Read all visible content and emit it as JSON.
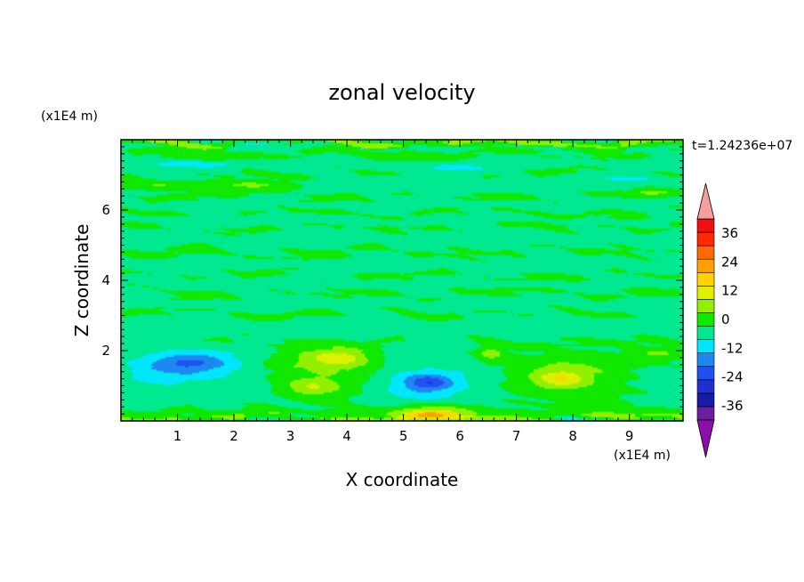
{
  "chart_data": {
    "type": "heatmap",
    "title": "zonal velocity",
    "xlabel": "X coordinate",
    "ylabel": "Z coordinate",
    "x_unit": "(x1E4 m)",
    "y_unit": "(x1E4 m)",
    "time_label": "t=1.24236e+07",
    "xlim": [
      0,
      9.95
    ],
    "ylim": [
      0,
      8
    ],
    "x_ticks": [
      "1",
      "2",
      "3",
      "4",
      "5",
      "6",
      "7",
      "8",
      "9"
    ],
    "y_ticks": [
      "2",
      "4",
      "6"
    ],
    "colorbar": {
      "ticks": [
        "36",
        "24",
        "12",
        "0",
        "-12",
        "-24",
        "-36"
      ],
      "levels": [
        -42,
        -36,
        -30,
        -24,
        -18,
        -12,
        -6,
        0,
        6,
        12,
        18,
        24,
        30,
        36,
        42
      ],
      "colors": [
        "#6a1fa0",
        "#1a1aa8",
        "#2030d0",
        "#2050f0",
        "#1e88f0",
        "#00e6ff",
        "#00e890",
        "#10e800",
        "#90f000",
        "#ddf000",
        "#ffd400",
        "#ffa000",
        "#ff6a00",
        "#ff2a00",
        "#f01010"
      ],
      "under_color": "#8a10a8",
      "over_color": "#f4a0a0"
    },
    "background_color": "#00ea92",
    "features": [
      {
        "type": "band",
        "x": [
          0,
          9.95
        ],
        "z": [
          0,
          0.15
        ],
        "value": 8,
        "smooth": 0.2
      },
      {
        "type": "band",
        "x": [
          0,
          9.95
        ],
        "z": [
          7.85,
          8
        ],
        "value": 8,
        "smooth": 0.2
      },
      {
        "type": "band",
        "x": [
          0,
          9.95
        ],
        "z": [
          0.15,
          0.4
        ],
        "value": 2,
        "smooth": 0.3
      },
      {
        "type": "band",
        "x": [
          0,
          9.95
        ],
        "z": [
          1.45,
          1.9
        ],
        "value": 2,
        "smooth": 0.35
      },
      {
        "type": "band",
        "x": [
          0,
          9.95
        ],
        "z": [
          2.1,
          2.35
        ],
        "value": 2,
        "smooth": 0.3
      },
      {
        "type": "band",
        "x": [
          0,
          9.95
        ],
        "z": [
          2.95,
          3.15
        ],
        "value": 2,
        "smooth": 0.3
      },
      {
        "type": "band",
        "x": [
          0,
          9.95
        ],
        "z": [
          3.5,
          3.75
        ],
        "value": 2,
        "smooth": 0.3
      },
      {
        "type": "band",
        "x": [
          0,
          9.95
        ],
        "z": [
          4.05,
          4.25
        ],
        "value": 2,
        "smooth": 0.3
      },
      {
        "type": "band",
        "x": [
          0,
          9.95
        ],
        "z": [
          4.65,
          4.95
        ],
        "value": 2,
        "smooth": 0.3
      },
      {
        "type": "band",
        "x": [
          0,
          9.95
        ],
        "z": [
          5.4,
          5.6
        ],
        "value": 2,
        "smooth": 0.3
      },
      {
        "type": "band",
        "x": [
          0,
          9.95
        ],
        "z": [
          5.85,
          6.0
        ],
        "value": 2,
        "smooth": 0.3
      },
      {
        "type": "band",
        "x": [
          0,
          9.95
        ],
        "z": [
          6.3,
          6.5
        ],
        "value": 2,
        "smooth": 0.3
      },
      {
        "type": "band",
        "x": [
          0,
          9.95
        ],
        "z": [
          6.95,
          7.15
        ],
        "value": 2,
        "smooth": 0.3
      },
      {
        "type": "band",
        "x": [
          0,
          9.95
        ],
        "z": [
          7.5,
          7.7
        ],
        "value": 2,
        "smooth": 0.3
      },
      {
        "type": "blob",
        "x": 0.6,
        "z": 6.7,
        "rx": 0.9,
        "rz": 0.18,
        "value": 8
      },
      {
        "type": "blob",
        "x": 2.3,
        "z": 6.7,
        "rx": 1.1,
        "rz": 0.18,
        "value": 8
      },
      {
        "type": "blob",
        "x": 1.7,
        "z": 7.5,
        "rx": 0.8,
        "rz": 0.12,
        "value": 7
      },
      {
        "type": "blob",
        "x": 5.1,
        "z": 7.5,
        "rx": 0.8,
        "rz": 0.12,
        "value": 7
      },
      {
        "type": "blob",
        "x": 9.4,
        "z": 6.5,
        "rx": 0.5,
        "rz": 0.12,
        "value": 8
      },
      {
        "type": "blob",
        "x": 9.0,
        "z": 5.8,
        "rx": 0.4,
        "rz": 0.08,
        "value": 7
      },
      {
        "type": "blob",
        "x": 1.3,
        "z": 7.3,
        "rx": 1.1,
        "rz": 0.15,
        "value": -8
      },
      {
        "type": "blob",
        "x": 5.8,
        "z": 7.2,
        "rx": 0.9,
        "rz": 0.15,
        "value": -7
      },
      {
        "type": "blob",
        "x": 9.0,
        "z": 6.9,
        "rx": 0.7,
        "rz": 0.12,
        "value": -7
      },
      {
        "type": "blob",
        "x": 2.5,
        "z": 7.9,
        "rx": 1.0,
        "rz": 0.1,
        "value": -9
      },
      {
        "type": "blob",
        "x": 1.0,
        "z": 1.55,
        "rx": 1.7,
        "rz": 0.7,
        "value": -7
      },
      {
        "type": "blob",
        "x": 1.2,
        "z": 1.65,
        "rx": 0.95,
        "rz": 0.35,
        "value": -13
      },
      {
        "type": "blob",
        "x": 3.65,
        "z": 1.4,
        "rx": 1.2,
        "rz": 0.9,
        "value": 8
      },
      {
        "type": "blob",
        "x": 3.9,
        "z": 1.8,
        "rx": 0.7,
        "rz": 0.3,
        "value": 11
      },
      {
        "type": "blob",
        "x": 3.35,
        "z": 0.95,
        "rx": 0.6,
        "rz": 0.3,
        "value": 10
      },
      {
        "type": "blob",
        "x": 5.3,
        "z": 1.1,
        "rx": 1.15,
        "rz": 0.95,
        "value": -8
      },
      {
        "type": "blob",
        "x": 5.45,
        "z": 1.1,
        "rx": 0.5,
        "rz": 0.28,
        "value": -14
      },
      {
        "type": "blob",
        "x": 5.4,
        "z": 0.25,
        "rx": 1.3,
        "rz": 0.35,
        "value": 9
      },
      {
        "type": "blob",
        "x": 5.5,
        "z": 0.15,
        "rx": 0.6,
        "rz": 0.2,
        "value": 14
      },
      {
        "type": "blob",
        "x": 6.55,
        "z": 1.9,
        "rx": 0.25,
        "rz": 0.22,
        "value": 9
      },
      {
        "type": "blob",
        "x": 7.9,
        "z": 1.2,
        "rx": 1.3,
        "rz": 0.85,
        "value": 8
      },
      {
        "type": "blob",
        "x": 7.8,
        "z": 1.2,
        "rx": 0.55,
        "rz": 0.3,
        "value": 12
      },
      {
        "type": "blob",
        "x": 8.0,
        "z": 0.05,
        "rx": 0.35,
        "rz": 0.1,
        "value": -16
      },
      {
        "type": "blob",
        "x": 9.5,
        "z": 1.9,
        "rx": 0.5,
        "rz": 0.2,
        "value": 7
      },
      {
        "type": "blob",
        "x": 3.0,
        "z": 0.1,
        "rx": 0.7,
        "rz": 0.12,
        "value": -7
      }
    ]
  }
}
